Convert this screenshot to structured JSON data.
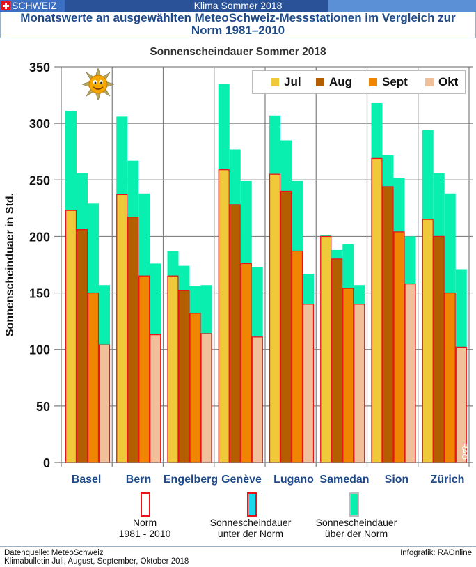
{
  "header": {
    "brand": "SCHWEIZ",
    "title": "Klima Sommer 2018",
    "subtitle_line1": "Monatswerte an ausgewählten MeteoSchweiz-Messstationen im Vergleich zur",
    "subtitle_line2": "Norm 1981–2010"
  },
  "bottom_legend": [
    {
      "label1": "Norm",
      "label2": "1981 - 2010",
      "fill": "#ffffff",
      "border": "#e8141a"
    },
    {
      "label1": "Sonnescheindauer",
      "label2": "unter der Norm",
      "fill": "#19d8ec",
      "border": "#e8141a"
    },
    {
      "label1": "Sonnescheindauer",
      "label2": "über der Norm",
      "fill": "#08efaf",
      "border": "#bbbbbb"
    }
  ],
  "footer": {
    "source_line1": "Datenquelle: MeteoSchweiz",
    "source_line2": "Klimabulletin Juli, August, September, Oktober 2018",
    "credit": "Infografik: RAOnline"
  },
  "watermark": "RAO",
  "colors": {
    "above_norm": "#08efaf",
    "norm_outline": "#e8141a",
    "grid": "#808080"
  },
  "chart_data": {
    "type": "bar",
    "title": "Sonnenscheindauer Sommer 2018",
    "xlabel": "",
    "ylabel": "Sonnenscheinduaer in Std.",
    "ylim": [
      0,
      350
    ],
    "yticks": [
      0,
      50,
      100,
      150,
      200,
      250,
      300,
      350
    ],
    "grid": true,
    "legend_position": "top-right",
    "categories": [
      "Basel",
      "Bern",
      "Engelberg",
      "Genève",
      "Lugano",
      "Samedan",
      "Sion",
      "Zürich"
    ],
    "series": [
      {
        "name": "Jul",
        "color": "#f0c93a",
        "actual": [
          311,
          306,
          187,
          335,
          307,
          201,
          318,
          294
        ],
        "norm": [
          223,
          237,
          165,
          259,
          255,
          200,
          269,
          215
        ]
      },
      {
        "name": "Aug",
        "color": "#b35f00",
        "actual": [
          256,
          267,
          174,
          277,
          285,
          188,
          272,
          256
        ],
        "norm": [
          206,
          217,
          152,
          228,
          240,
          180,
          244,
          200
        ]
      },
      {
        "name": "Sept",
        "color": "#ef8500",
        "actual": [
          229,
          238,
          156,
          249,
          249,
          193,
          252,
          238
        ],
        "norm": [
          150,
          165,
          132,
          176,
          187,
          154,
          204,
          150
        ]
      },
      {
        "name": "Okt",
        "color": "#f0c09a",
        "actual": [
          157,
          176,
          157,
          173,
          167,
          157,
          200,
          171
        ],
        "norm": [
          104,
          113,
          114,
          111,
          140,
          140,
          158,
          102
        ]
      }
    ]
  }
}
